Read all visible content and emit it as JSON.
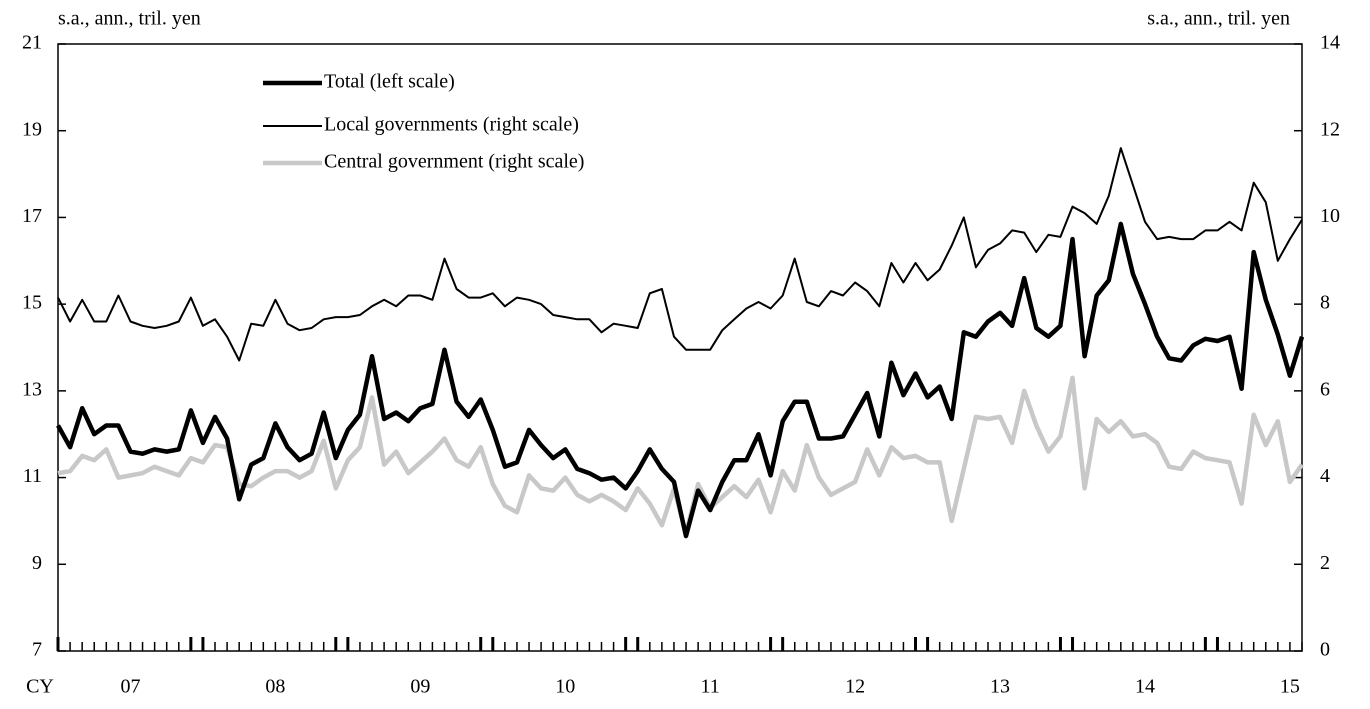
{
  "chart_data": {
    "type": "line",
    "ylabel": "s.a., ann., tril. yen",
    "y2label": "s.a., ann., tril. yen",
    "xlabel": "CY",
    "categories": [
      null,
      null,
      null,
      null,
      null,
      null,
      "07",
      null,
      null,
      null,
      null,
      null,
      null,
      null,
      null,
      null,
      null,
      null,
      "08",
      null,
      null,
      null,
      null,
      null,
      null,
      null,
      null,
      null,
      null,
      null,
      "09",
      null,
      null,
      null,
      null,
      null,
      null,
      null,
      null,
      null,
      null,
      null,
      "10",
      null,
      null,
      null,
      null,
      null,
      null,
      null,
      null,
      null,
      null,
      null,
      "11",
      null,
      null,
      null,
      null,
      null,
      null,
      null,
      null,
      null,
      null,
      null,
      "12",
      null,
      null,
      null,
      null,
      null,
      null,
      null,
      null,
      null,
      null,
      null,
      "13",
      null,
      null,
      null,
      null,
      null,
      null,
      null,
      null,
      null,
      null,
      null,
      "14",
      null,
      null,
      null,
      null,
      null,
      null,
      null,
      null,
      null,
      null,
      null,
      "15",
      null
    ],
    "ylim": [
      7,
      21
    ],
    "yticks": [
      7,
      9,
      11,
      13,
      15,
      17,
      19,
      21
    ],
    "y2lim": [
      0,
      14
    ],
    "y2ticks": [
      0,
      2,
      4,
      6,
      8,
      10,
      12,
      14
    ],
    "legend": "upper left",
    "series": [
      {
        "name": "Total (left scale)",
        "color": "#000000",
        "width": 4.5,
        "values": [
          12.2,
          11.7,
          12.6,
          12.0,
          12.2,
          12.2,
          11.6,
          11.55,
          11.65,
          11.6,
          11.65,
          12.55,
          11.8,
          12.4,
          11.9,
          10.5,
          11.3,
          11.45,
          12.25,
          11.7,
          11.4,
          11.55,
          12.5,
          11.45,
          12.1,
          12.45,
          13.8,
          12.35,
          12.5,
          12.3,
          12.6,
          12.7,
          13.95,
          12.75,
          12.4,
          12.8,
          12.1,
          11.25,
          11.35,
          12.1,
          11.75,
          11.45,
          11.65,
          11.2,
          11.1,
          10.95,
          11.0,
          10.75,
          11.15,
          11.65,
          11.2,
          10.9,
          9.65,
          10.7,
          10.25,
          10.9,
          11.4,
          11.4,
          12.0,
          11.05,
          12.3,
          12.75,
          12.75,
          11.9,
          11.9,
          11.95,
          12.45,
          12.95,
          11.95,
          13.65,
          12.9,
          13.4,
          12.85,
          13.1,
          12.35,
          14.35,
          14.25,
          14.6,
          14.8,
          14.5,
          15.6,
          14.45,
          14.25,
          14.5,
          16.5,
          13.8,
          15.2,
          15.55,
          16.85,
          15.7,
          15.0,
          14.25,
          13.75,
          13.7,
          14.05,
          14.2,
          14.15,
          14.25,
          13.05,
          16.2,
          15.1,
          14.3,
          13.35,
          14.25
        ]
      },
      {
        "name": "Local governments (right scale)",
        "color": "#000000",
        "width": 2,
        "axis": "y2",
        "values": [
          8.15,
          7.6,
          8.1,
          7.6,
          7.6,
          8.2,
          7.6,
          7.5,
          7.45,
          7.5,
          7.6,
          8.15,
          7.5,
          7.65,
          7.25,
          6.7,
          7.55,
          7.5,
          8.1,
          7.55,
          7.4,
          7.45,
          7.65,
          7.7,
          7.7,
          7.75,
          7.95,
          8.1,
          7.95,
          8.2,
          8.2,
          8.1,
          9.05,
          8.35,
          8.15,
          8.15,
          8.25,
          7.95,
          8.15,
          8.1,
          8.0,
          7.75,
          7.7,
          7.65,
          7.65,
          7.35,
          7.55,
          7.5,
          7.45,
          8.25,
          8.35,
          7.25,
          6.95,
          6.95,
          6.95,
          7.4,
          7.65,
          7.9,
          8.05,
          7.9,
          8.2,
          9.05,
          8.05,
          7.95,
          8.3,
          8.2,
          8.5,
          8.3,
          7.95,
          8.95,
          8.5,
          8.95,
          8.55,
          8.8,
          9.35,
          10.0,
          8.85,
          9.25,
          9.4,
          9.7,
          9.65,
          9.2,
          9.6,
          9.55,
          10.25,
          10.1,
          9.85,
          10.5,
          11.6,
          10.75,
          9.9,
          9.5,
          9.55,
          9.5,
          9.5,
          9.7,
          9.7,
          9.9,
          9.7,
          10.8,
          10.35,
          9.0,
          9.5,
          9.95
        ]
      },
      {
        "name": "Central government (right scale)",
        "color": "#c8c8c8",
        "width": 4.5,
        "axis": "y2",
        "values": [
          4.1,
          4.15,
          4.5,
          4.4,
          4.65,
          4.0,
          4.05,
          4.1,
          4.25,
          4.15,
          4.05,
          4.45,
          4.35,
          4.75,
          4.7,
          3.85,
          3.8,
          4.0,
          4.15,
          4.15,
          4.0,
          4.15,
          4.85,
          3.75,
          4.4,
          4.7,
          5.85,
          4.3,
          4.6,
          4.1,
          4.35,
          4.6,
          4.9,
          4.4,
          4.25,
          4.7,
          3.85,
          3.35,
          3.2,
          4.05,
          3.75,
          3.7,
          4.0,
          3.6,
          3.45,
          3.6,
          3.45,
          3.25,
          3.75,
          3.4,
          2.9,
          3.75,
          2.7,
          3.85,
          3.3,
          3.55,
          3.8,
          3.55,
          3.95,
          3.2,
          4.15,
          3.7,
          4.75,
          4.0,
          3.6,
          3.75,
          3.9,
          4.65,
          4.05,
          4.7,
          4.45,
          4.5,
          4.35,
          4.35,
          3.0,
          4.2,
          5.4,
          5.35,
          5.4,
          4.8,
          6.0,
          5.2,
          4.6,
          4.95,
          6.3,
          3.75,
          5.35,
          5.05,
          5.3,
          4.95,
          5.0,
          4.8,
          4.25,
          4.2,
          4.6,
          4.45,
          4.4,
          4.35,
          3.4,
          5.45,
          4.75,
          5.3,
          3.9,
          4.3
        ]
      }
    ]
  }
}
